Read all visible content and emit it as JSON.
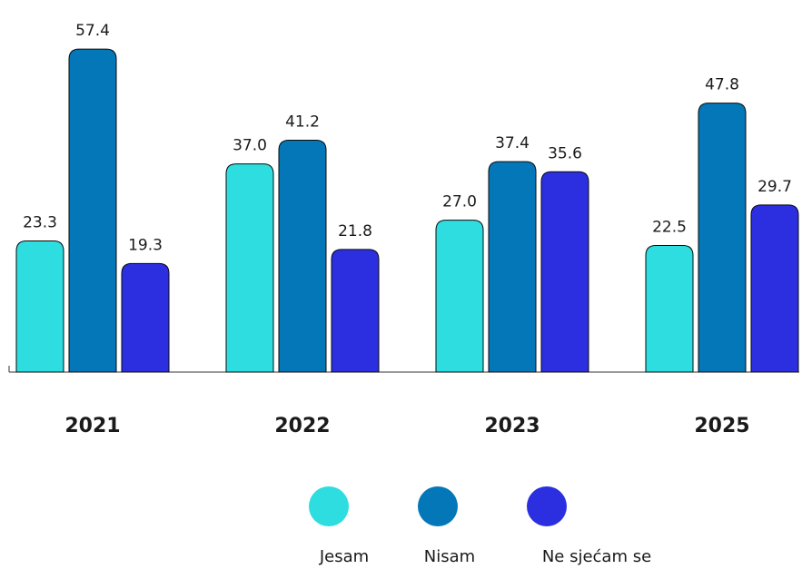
{
  "chart_data": {
    "type": "bar",
    "categories": [
      "2021",
      "2022",
      "2023",
      "2025"
    ],
    "series": [
      {
        "name": "Jesam",
        "values": [
          23.3,
          37.0,
          27.0,
          22.5
        ],
        "color": "#2EDDE0"
      },
      {
        "name": "Nisam",
        "values": [
          57.4,
          41.2,
          37.4,
          47.8
        ],
        "color": "#0477B8"
      },
      {
        "name": "Ne sjećam se",
        "values": [
          19.3,
          21.8,
          35.6,
          29.7
        ],
        "color": "#2B2FE0"
      }
    ],
    "value_labels": [
      [
        "23.3",
        "57.4",
        "19.3"
      ],
      [
        "37.0",
        "41.2",
        "21.8"
      ],
      [
        "27.0",
        "37.4",
        "35.6"
      ],
      [
        "22.5",
        "47.8",
        "29.7"
      ]
    ],
    "ylim": [
      0,
      60
    ],
    "grid": false,
    "legend_position": "bottom"
  }
}
